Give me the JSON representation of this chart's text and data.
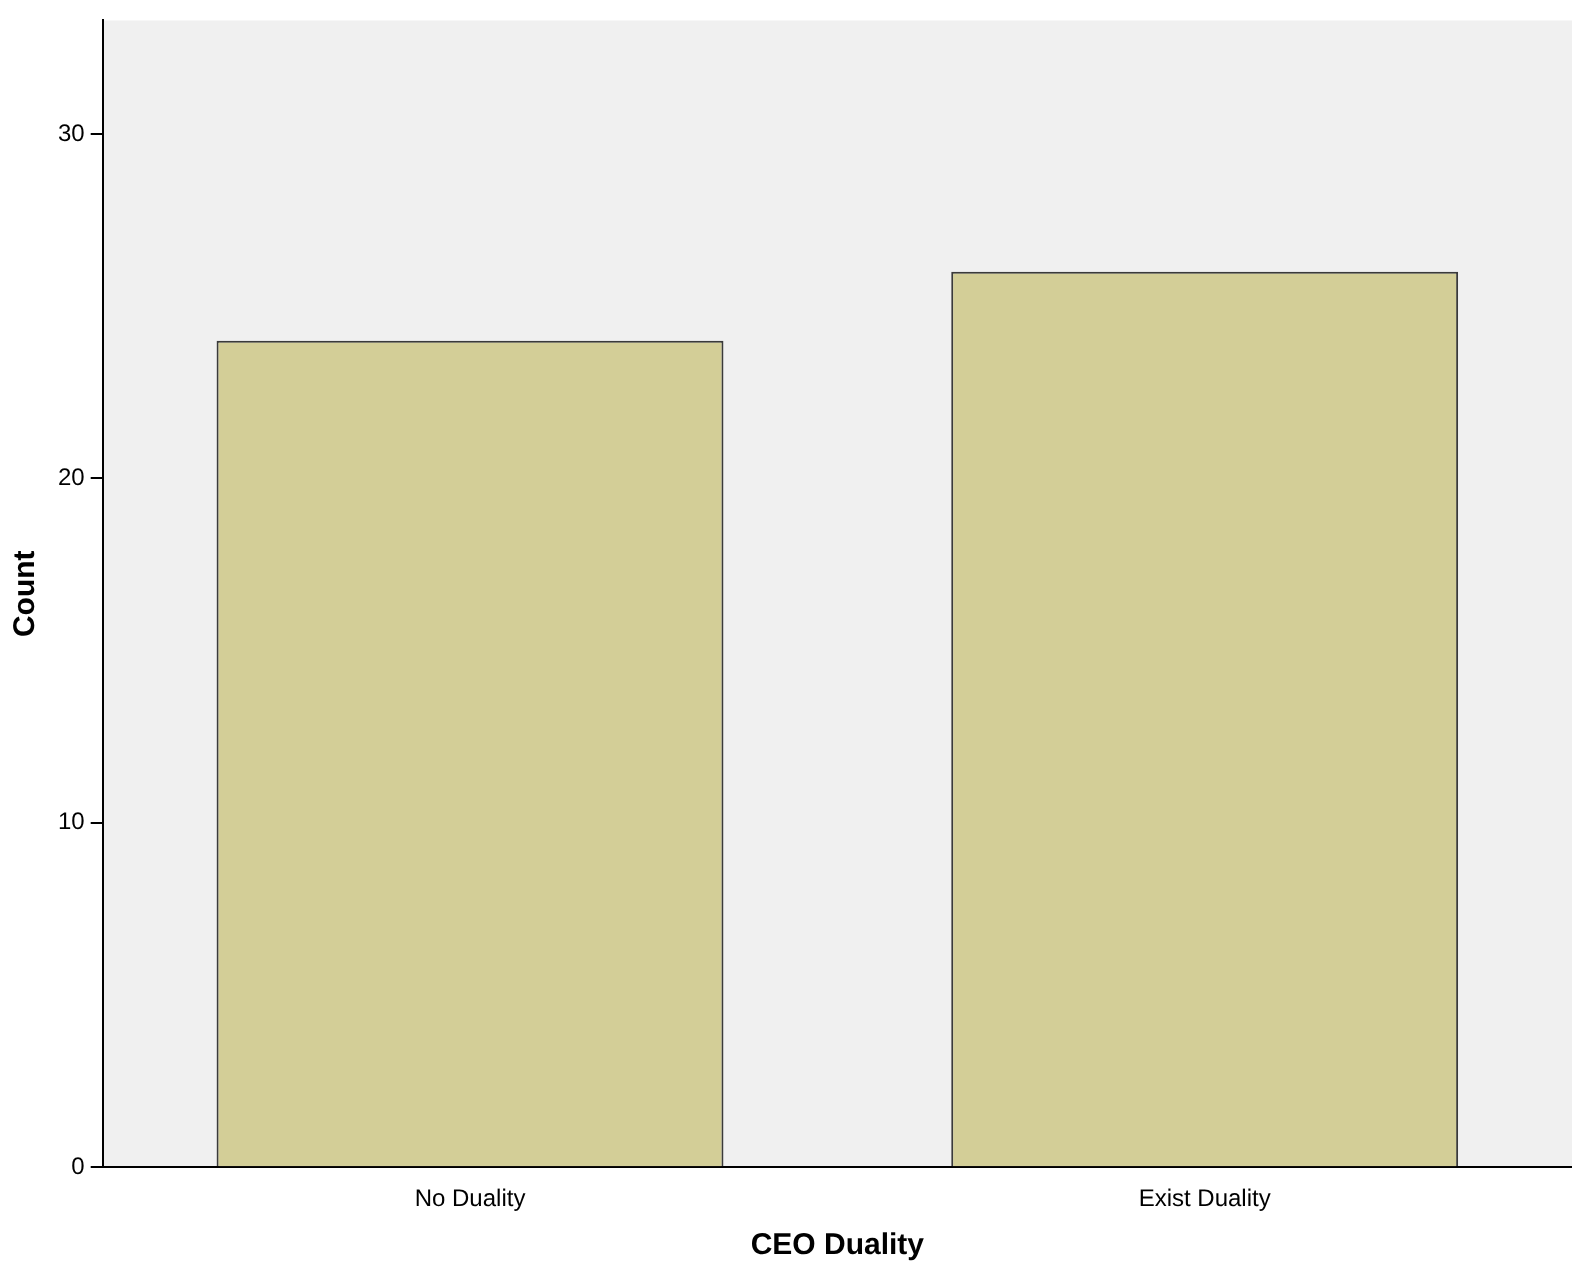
{
  "chart_data": {
    "type": "bar",
    "xlabel": "CEO Duality",
    "ylabel": "Count",
    "categories": [
      "No Duality",
      "Exist Duality"
    ],
    "values": [
      24,
      26
    ],
    "color": "#d3ce97",
    "ylim": [
      0,
      33.3
    ],
    "yticks": [
      0,
      10,
      20,
      30
    ],
    "grid": false,
    "legend": false
  }
}
